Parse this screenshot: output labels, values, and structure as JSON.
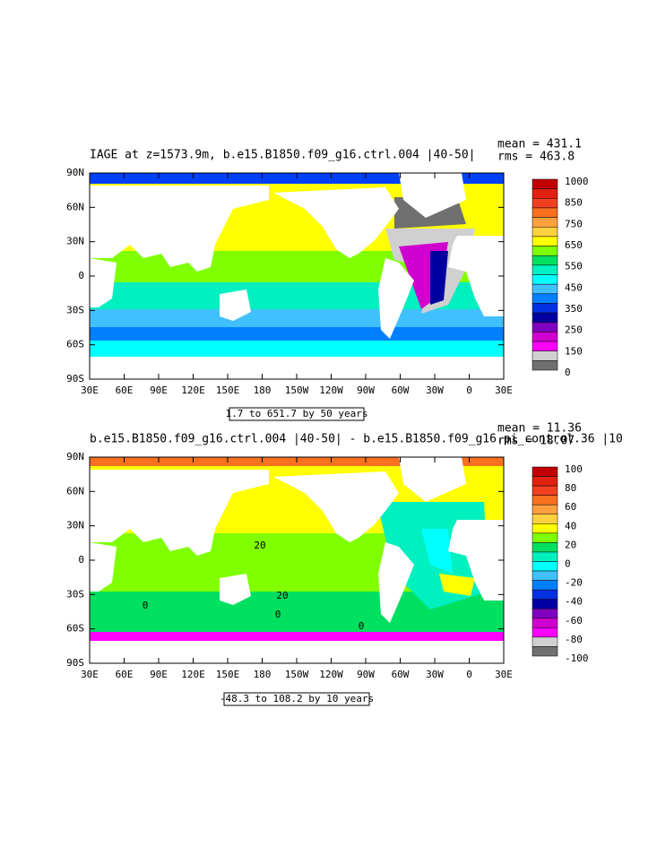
{
  "panels": [
    {
      "title": "IAGE at z=1573.9m, b.e15.B1850.f09_g16.ctrl.004 |40-50|",
      "stats": [
        "mean = 431.1",
        "rms = 463.8"
      ],
      "lat_labels": [
        "90N",
        "60N",
        "30N",
        "0",
        "30S",
        "60S",
        "90S"
      ],
      "lon_labels": [
        "30E",
        "60E",
        "90E",
        "120E",
        "150E",
        "180",
        "150W",
        "120W",
        "90W",
        "60W",
        "30W",
        "0",
        "30E"
      ],
      "colorbar": {
        "labels": [
          1000,
          850,
          750,
          650,
          550,
          450,
          350,
          250,
          150,
          0
        ],
        "colors": [
          "#c00000",
          "#e02010",
          "#f04020",
          "#f87020",
          "#ffa040",
          "#ffd040",
          "#ffff00",
          "#80ff00",
          "#00e060",
          "#00f0c0",
          "#00ffff",
          "#40c0ff",
          "#0080ff",
          "#0030e0",
          "#0000a0",
          "#8000c0",
          "#d000d0",
          "#ff00ff",
          "#d0d0d0",
          "#707070"
        ]
      },
      "contour_info": "1.7 to 651.7 by 50 years"
    },
    {
      "title": "b.e15.B1850.f09_g16.ctrl.004 |40-50| - b.e15.B1850.f09_g16.pi_control.36 |10",
      "stats": [
        "mean = 11.36",
        "rms = 18.07"
      ],
      "lat_labels": [
        "90N",
        "60N",
        "30N",
        "0",
        "30S",
        "60S",
        "90S"
      ],
      "lon_labels": [
        "30E",
        "60E",
        "90E",
        "120E",
        "150E",
        "180",
        "150W",
        "120W",
        "90W",
        "60W",
        "30W",
        "0",
        "30E"
      ],
      "colorbar": {
        "labels": [
          100,
          80,
          60,
          40,
          20,
          0,
          -20,
          -40,
          -60,
          -80,
          -100
        ],
        "colors": [
          "#c00000",
          "#e02010",
          "#f04020",
          "#f87020",
          "#ffa040",
          "#ffd040",
          "#ffff00",
          "#80ff00",
          "#00e060",
          "#00f0c0",
          "#00ffff",
          "#40c0ff",
          "#0080ff",
          "#0030e0",
          "#0000a0",
          "#8000c0",
          "#d000d0",
          "#ff00ff",
          "#d0d0d0",
          "#707070"
        ]
      },
      "contour_info": "-48.3 to 108.2 by 10 years",
      "contour_labels": [
        "20",
        "20",
        "0",
        "0",
        "0"
      ]
    }
  ]
}
